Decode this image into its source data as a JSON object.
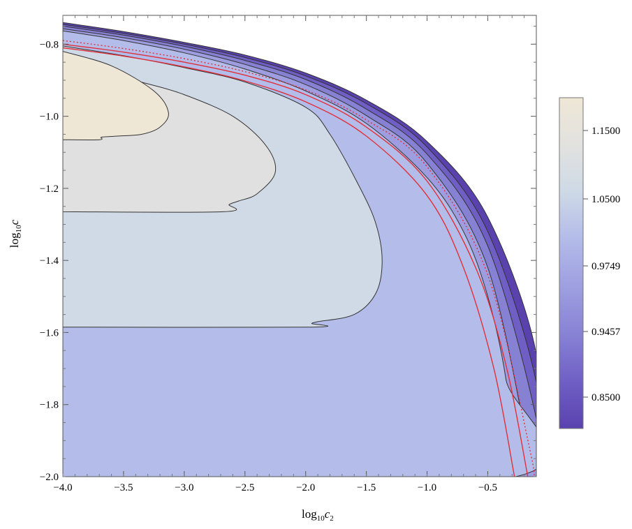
{
  "chart_data": {
    "type": "heatmap",
    "title": "",
    "xlabel": "log10 c2",
    "ylabel": "log10 c",
    "xlim": [
      -4.0,
      -0.1
    ],
    "ylim": [
      -2.0,
      -0.72
    ],
    "x_ticks": [
      {
        "v": -4.0,
        "label": "−4.0"
      },
      {
        "v": -3.5,
        "label": "−3.5"
      },
      {
        "v": -3.0,
        "label": "−3.0"
      },
      {
        "v": -2.5,
        "label": "−2.5"
      },
      {
        "v": -2.0,
        "label": "−2.0"
      },
      {
        "v": -1.5,
        "label": "−1.5"
      },
      {
        "v": -1.0,
        "label": "−1.0"
      },
      {
        "v": -0.5,
        "label": "−0.5"
      }
    ],
    "y_ticks": [
      {
        "v": -0.8,
        "label": "−0.8"
      },
      {
        "v": -1.0,
        "label": "−1.0"
      },
      {
        "v": -1.2,
        "label": "−1.2"
      },
      {
        "v": -1.4,
        "label": "−1.4"
      },
      {
        "v": -1.6,
        "label": "−1.6"
      },
      {
        "v": -1.8,
        "label": "−1.8"
      },
      {
        "v": -2.0,
        "label": "−2.0"
      }
    ],
    "contour_fill_colors": [
      "#efe7d6",
      "#dfe0df",
      "#cfdae6",
      "#b4bde9",
      "#9d9de0",
      "#8781d4",
      "#6f5fc4",
      "#5a42ae"
    ],
    "regions": [
      {
        "level_rank": 1,
        "desc": "outer purple bands",
        "boundary": [
          [
            -4.0,
            -0.72
          ],
          [
            -4.0,
            -2.0
          ],
          [
            -0.1,
            -2.0
          ],
          [
            -0.1,
            -1.66
          ],
          [
            -0.5,
            -1.28
          ],
          [
            -1.0,
            -1.07
          ],
          [
            -1.5,
            -0.955
          ],
          [
            -2.0,
            -0.88
          ],
          [
            -2.5,
            -0.83
          ],
          [
            -3.0,
            -0.795
          ],
          [
            -3.5,
            -0.765
          ],
          [
            -4.0,
            -0.74
          ]
        ]
      },
      {
        "level_rank": 2,
        "boundary": [
          [
            -4.0,
            -0.745
          ],
          [
            -3.5,
            -0.77
          ],
          [
            -3.0,
            -0.8
          ],
          [
            -2.5,
            -0.837
          ],
          [
            -2.0,
            -0.888
          ],
          [
            -1.5,
            -0.965
          ],
          [
            -1.0,
            -1.085
          ],
          [
            -0.5,
            -1.32
          ],
          [
            -0.1,
            -1.74
          ],
          [
            -0.1,
            -2.0
          ],
          [
            -4.0,
            -2.0
          ]
        ]
      },
      {
        "level_rank": 3,
        "boundary": [
          [
            -4.0,
            -0.75
          ],
          [
            -3.5,
            -0.775
          ],
          [
            -3.0,
            -0.806
          ],
          [
            -2.5,
            -0.845
          ],
          [
            -2.0,
            -0.898
          ],
          [
            -1.5,
            -0.98
          ],
          [
            -1.0,
            -1.105
          ],
          [
            -0.5,
            -1.36
          ],
          [
            -0.1,
            -1.84
          ],
          [
            -0.1,
            -2.0
          ],
          [
            -4.0,
            -2.0
          ]
        ]
      },
      {
        "level_rank": 4,
        "boundary": [
          [
            -4.0,
            -0.757
          ],
          [
            -3.5,
            -0.782
          ],
          [
            -3.0,
            -0.814
          ],
          [
            -2.5,
            -0.856
          ],
          [
            -2.0,
            -0.912
          ],
          [
            -1.5,
            -0.998
          ],
          [
            -1.0,
            -1.13
          ],
          [
            -0.5,
            -1.42
          ],
          [
            -0.15,
            -1.95
          ],
          [
            -0.12,
            -2.0
          ],
          [
            -4.0,
            -2.0
          ]
        ]
      },
      {
        "level_rank": 5,
        "value_band": "0.9749",
        "boundary": [
          [
            -4.0,
            -0.763
          ],
          [
            -3.5,
            -0.79
          ],
          [
            -3.0,
            -0.824
          ],
          [
            -2.5,
            -0.869
          ],
          [
            -2.0,
            -0.93
          ],
          [
            -1.5,
            -1.02
          ],
          [
            -1.0,
            -1.17
          ],
          [
            -0.7,
            -1.32
          ],
          [
            -0.5,
            -1.5
          ],
          [
            -0.35,
            -1.73
          ],
          [
            -0.27,
            -2.0
          ],
          [
            -4.0,
            -2.0
          ]
        ]
      },
      {
        "level_rank": 6,
        "value_band": "1.0500",
        "boundary": [
          [
            -4.0,
            -1.265
          ],
          [
            -2.68,
            -1.265
          ],
          [
            -2.63,
            -1.245
          ],
          [
            -2.55,
            -1.235
          ],
          [
            -2.4,
            -1.215
          ],
          [
            -2.25,
            -1.155
          ],
          [
            -2.33,
            -1.08
          ],
          [
            -2.6,
            -1.0
          ],
          [
            -3.0,
            -0.94
          ],
          [
            -3.3,
            -0.91
          ],
          [
            -3.6,
            -0.885
          ],
          [
            -4.0,
            -0.86
          ]
        ]
      },
      {
        "level_rank": 7,
        "value_band": "1.1500",
        "boundary": [
          [
            -4.0,
            -1.065
          ],
          [
            -3.7,
            -1.065
          ],
          [
            -3.68,
            -1.058
          ],
          [
            -3.55,
            -1.055
          ],
          [
            -3.35,
            -1.05
          ],
          [
            -3.2,
            -1.03
          ],
          [
            -3.13,
            -0.99
          ],
          [
            -3.25,
            -0.93
          ],
          [
            -3.6,
            -0.86
          ],
          [
            -4.0,
            -0.82
          ]
        ]
      },
      {
        "level_rank": 8,
        "boundary": [
          [
            -4.0,
            -0.805
          ],
          [
            -3.5,
            -0.832
          ],
          [
            -3.0,
            -0.865
          ],
          [
            -2.5,
            -0.905
          ],
          [
            -2.0,
            -0.975
          ],
          [
            -1.8,
            -1.05
          ],
          [
            -1.55,
            -1.2
          ],
          [
            -1.42,
            -1.3
          ],
          [
            -1.37,
            -1.4
          ],
          [
            -1.42,
            -1.49
          ],
          [
            -1.6,
            -1.55
          ],
          [
            -1.9,
            -1.57
          ],
          [
            -1.95,
            -1.575
          ],
          [
            -1.97,
            -1.585
          ],
          [
            -4.0,
            -1.585
          ]
        ]
      }
    ],
    "red_curves": [
      [
        [
          -4.0,
          -0.81
        ],
        [
          -3.5,
          -0.833
        ],
        [
          -3.0,
          -0.863
        ],
        [
          -2.5,
          -0.902
        ],
        [
          -2.0,
          -0.96
        ],
        [
          -1.5,
          -1.055
        ],
        [
          -1.0,
          -1.22
        ],
        [
          -0.7,
          -1.42
        ],
        [
          -0.45,
          -1.7
        ],
        [
          -0.28,
          -2.0
        ]
      ],
      [
        [
          -4.0,
          -0.8
        ],
        [
          -3.5,
          -0.822
        ],
        [
          -3.0,
          -0.85
        ],
        [
          -2.5,
          -0.886
        ],
        [
          -2.0,
          -0.94
        ],
        [
          -1.5,
          -1.03
        ],
        [
          -1.0,
          -1.18
        ],
        [
          -0.6,
          -1.42
        ],
        [
          -0.35,
          -1.69
        ],
        [
          -0.17,
          -2.0
        ]
      ],
      [
        [
          -4.0,
          -0.79
        ],
        [
          -3.5,
          -0.812
        ],
        [
          -3.0,
          -0.84
        ],
        [
          -2.5,
          -0.876
        ],
        [
          -2.0,
          -0.927
        ],
        [
          -1.5,
          -1.01
        ],
        [
          -1.0,
          -1.14
        ],
        [
          -0.5,
          -1.44
        ],
        [
          -0.15,
          -1.93
        ],
        [
          -0.13,
          -2.0
        ]
      ]
    ],
    "colorbar": {
      "labels": [
        "1.1500",
        "1.0500",
        "0.9749",
        "0.9457",
        "0.8500"
      ],
      "colors": [
        "#efe7d6",
        "#dfe0df",
        "#cfdae6",
        "#b4bde9",
        "#9d9de0",
        "#8781d4",
        "#6f5fc4",
        "#5a42ae"
      ]
    }
  }
}
